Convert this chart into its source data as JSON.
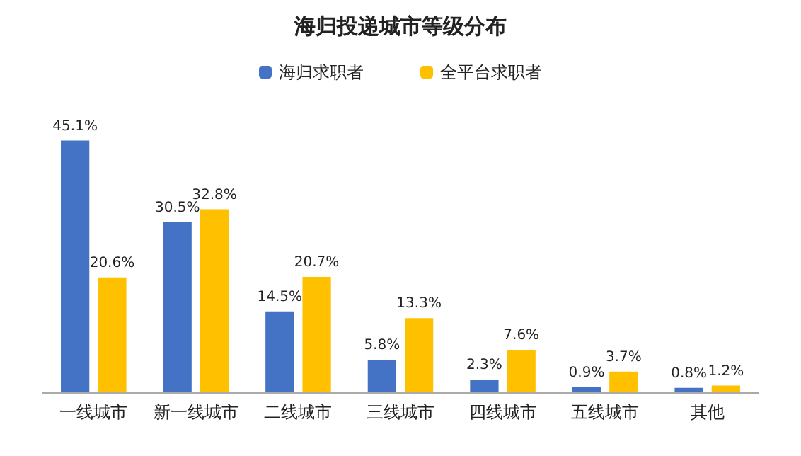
{
  "chart_data": {
    "type": "bar",
    "title": "海归投递城市等级分布",
    "categories": [
      "一线城市",
      "新一线城市",
      "二线城市",
      "三线城市",
      "四线城市",
      "五线城市",
      "其他"
    ],
    "series": [
      {
        "name": "海归求职者",
        "color": "#4472c4",
        "values": [
          45.1,
          30.5,
          14.5,
          5.8,
          2.3,
          0.9,
          0.8
        ],
        "value_labels": [
          "45.1%",
          "30.5%",
          "14.5%",
          "5.8%",
          "2.3%",
          "0.9%",
          "0.8%"
        ]
      },
      {
        "name": "全平台求职者",
        "color": "#ffc000",
        "values": [
          20.6,
          32.8,
          20.7,
          13.3,
          7.6,
          3.7,
          1.2
        ],
        "value_labels": [
          "20.6%",
          "32.8%",
          "20.7%",
          "13.3%",
          "7.6%",
          "3.7%",
          "1.2%"
        ]
      }
    ],
    "legend": "top",
    "tick_labels": "x"
  }
}
